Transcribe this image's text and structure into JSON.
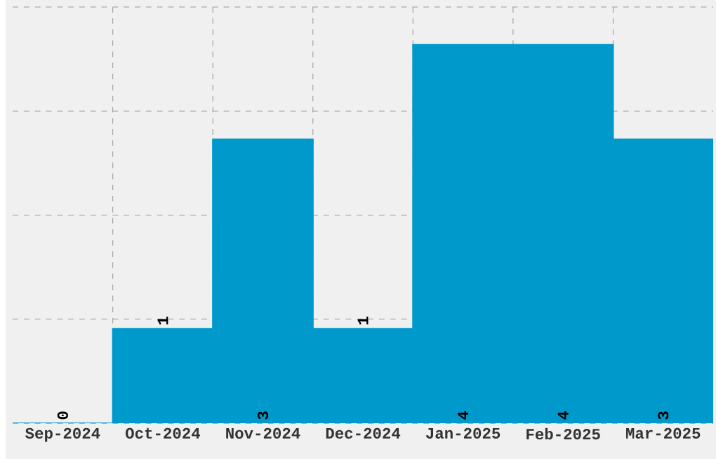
{
  "chart_data": {
    "type": "bar",
    "categories": [
      "Sep-2024",
      "Oct-2024",
      "Nov-2024",
      "Dec-2024",
      "Jan-2025",
      "Feb-2025",
      "Mar-2025"
    ],
    "values": [
      0,
      1,
      3,
      1,
      4,
      4,
      3
    ],
    "color": "#0099cc",
    "ylim": [
      0,
      4.4
    ],
    "yticks": [
      {
        "value": 0,
        "label": null
      },
      {
        "value": 1.1,
        "label": null
      },
      {
        "value": 2.2,
        "label": null
      },
      {
        "value": 3.3,
        "label": null
      },
      {
        "value": 4.4,
        "label": null
      }
    ],
    "tick_labels": "x",
    "grid": true,
    "data_labels": true
  }
}
